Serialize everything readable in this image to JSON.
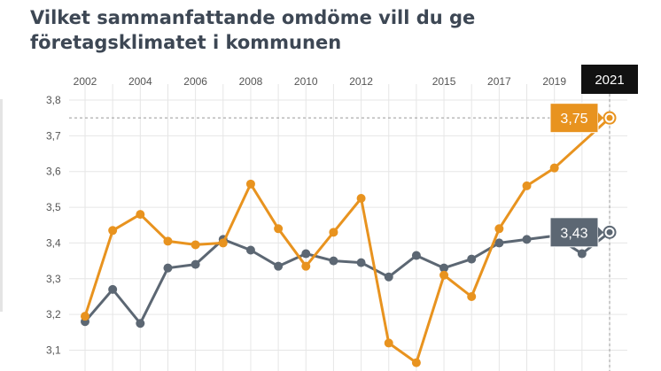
{
  "title": "Vilket sammanfattande omdöme vill du ge företagsklimatet i kommunen",
  "colors": {
    "orange": "#e8931f",
    "gray": "#5c6773",
    "grid": "#e6e6e6",
    "highlight_bg": "#111111",
    "axis_text": "#555555"
  },
  "chart_data": {
    "type": "line",
    "title": "Vilket sammanfattande omdöme vill du ge företagsklimatet i kommunen",
    "xlabel": "",
    "ylabel": "",
    "x": [
      2002,
      2003,
      2004,
      2005,
      2006,
      2007,
      2008,
      2009,
      2010,
      2011,
      2012,
      2013,
      2014,
      2015,
      2016,
      2017,
      2018,
      2019,
      2020,
      2021
    ],
    "x_tick_labels": [
      "2002",
      "2004",
      "2006",
      "2008",
      "2010",
      "2012",
      "2015",
      "2017",
      "2019",
      "2021"
    ],
    "y_tick_labels": [
      "3,1",
      "3,2",
      "3,3",
      "3,4",
      "3,5",
      "3,6",
      "3,7",
      "3,8"
    ],
    "ylim": [
      3.07,
      3.8
    ],
    "grid": true,
    "highlight_label": "2021",
    "series": [
      {
        "color": "#e8931f",
        "values": [
          3.195,
          3.435,
          3.48,
          3.405,
          3.395,
          3.4,
          3.565,
          3.44,
          3.335,
          3.43,
          3.525,
          3.12,
          3.065,
          3.31,
          3.25,
          3.44,
          3.56,
          3.61,
          null,
          3.75
        ],
        "end_label": "3,75"
      },
      {
        "color": "#5c6773",
        "values": [
          3.18,
          3.27,
          3.175,
          3.33,
          3.34,
          3.41,
          3.38,
          3.335,
          3.37,
          3.35,
          3.345,
          3.305,
          3.365,
          3.33,
          3.355,
          3.4,
          3.41,
          3.42,
          3.37,
          3.43
        ],
        "end_label": "3,43"
      }
    ]
  }
}
